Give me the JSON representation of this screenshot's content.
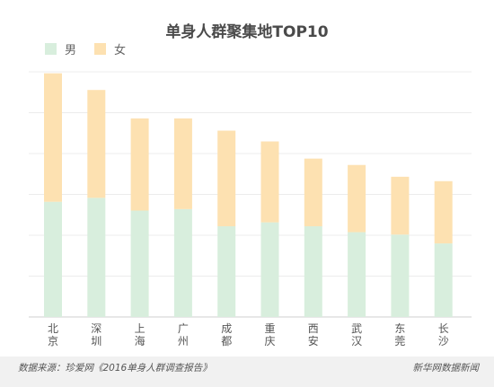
{
  "chart_data": {
    "type": "bar",
    "stacked": true,
    "title": "单身人群聚集地TOP10",
    "categories": [
      "北京",
      "深圳",
      "上海",
      "广州",
      "成都",
      "重庆",
      "西安",
      "武汉",
      "东莞",
      "长沙"
    ],
    "category_lines": [
      [
        "北",
        "京"
      ],
      [
        "深",
        "圳"
      ],
      [
        "上",
        "海"
      ],
      [
        "广",
        "州"
      ],
      [
        "成",
        "都"
      ],
      [
        "重",
        "庆"
      ],
      [
        "西",
        "安"
      ],
      [
        "武",
        "汉"
      ],
      [
        "东",
        "莞"
      ],
      [
        "长",
        "沙"
      ]
    ],
    "series": [
      {
        "name": "男",
        "color": "#d8eedd",
        "values": [
          2.35,
          2.43,
          2.17,
          2.2,
          1.85,
          1.93,
          1.85,
          1.73,
          1.68,
          1.5
        ]
      },
      {
        "name": "女",
        "color": "#fde1b1",
        "values": [
          2.62,
          2.2,
          1.88,
          1.85,
          1.95,
          1.65,
          1.38,
          1.37,
          1.18,
          1.27
        ]
      }
    ],
    "ylim": [
      0,
      5
    ],
    "grid": true,
    "legend_position": "top-left"
  },
  "footer": {
    "source": "数据来源：珍爱网《2016单身人群调查报告》",
    "brand": "新华网数据新闻"
  }
}
